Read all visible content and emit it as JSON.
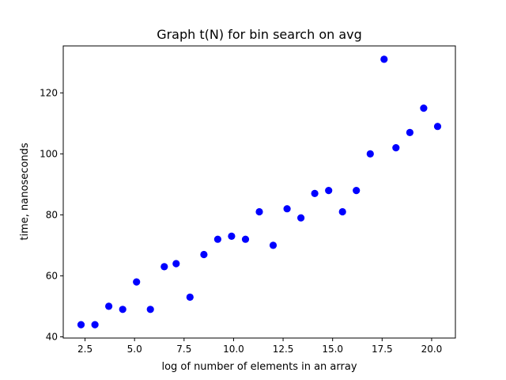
{
  "chart_data": {
    "type": "scatter",
    "title": "Graph t(N) for bin search on avg",
    "xlabel": "log of number of elements in an array",
    "ylabel": "time, nanoseconds",
    "xlim": [
      1.4,
      21.2
    ],
    "ylim": [
      39.6,
      135.4
    ],
    "xticks": [
      2.5,
      5.0,
      7.5,
      10.0,
      12.5,
      15.0,
      17.5,
      20.0
    ],
    "xtick_labels": [
      "2.5",
      "5.0",
      "7.5",
      "10.0",
      "12.5",
      "15.0",
      "17.5",
      "20.0"
    ],
    "yticks": [
      40,
      60,
      80,
      100,
      120
    ],
    "ytick_labels": [
      "40",
      "60",
      "80",
      "100",
      "120"
    ],
    "grid": false,
    "marker_color": "#0000ff",
    "series": [
      {
        "x": [
          2.3,
          3.0,
          3.7,
          4.4,
          5.1,
          5.8,
          6.5,
          7.1,
          7.8,
          8.5,
          9.2,
          9.9,
          10.6,
          11.3,
          12.0,
          12.7,
          13.4,
          14.1,
          14.8,
          15.5,
          16.2,
          16.9,
          17.6,
          18.2,
          18.9,
          19.6,
          20.3
        ],
        "y": [
          44,
          44,
          50,
          49,
          58,
          49,
          63,
          64,
          53,
          67,
          72,
          73,
          72,
          81,
          70,
          82,
          79,
          87,
          88,
          81,
          88,
          100,
          131,
          102,
          107,
          115,
          109
        ]
      }
    ]
  }
}
